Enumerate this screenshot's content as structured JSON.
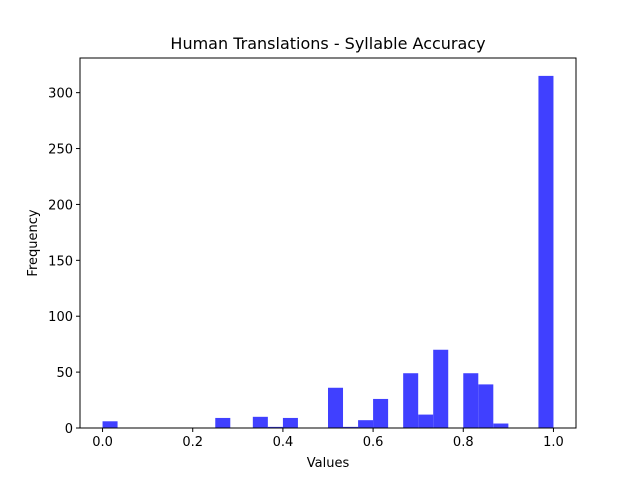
{
  "chart_data": {
    "type": "bar",
    "title": "Human Translations - Syllable Accuracy",
    "xlabel": "Values",
    "ylabel": "Frequency",
    "xlim": [
      -0.05,
      1.05
    ],
    "ylim": [
      0,
      331
    ],
    "xticks": [
      0.0,
      0.2,
      0.4,
      0.6,
      0.8,
      1.0
    ],
    "xtick_labels": [
      "0.0",
      "0.2",
      "0.4",
      "0.6",
      "0.8",
      "1.0"
    ],
    "yticks": [
      0,
      50,
      100,
      150,
      200,
      250,
      300
    ],
    "ytick_labels": [
      "0",
      "50",
      "100",
      "150",
      "200",
      "250",
      "300"
    ],
    "bar_color": "#4040ff",
    "bin_width": 0.0333,
    "bins": [
      {
        "x": 0.0,
        "value": 6
      },
      {
        "x": 0.25,
        "value": 9
      },
      {
        "x": 0.3333,
        "value": 10
      },
      {
        "x": 0.3667,
        "value": 1
      },
      {
        "x": 0.4,
        "value": 9
      },
      {
        "x": 0.5,
        "value": 36
      },
      {
        "x": 0.5333,
        "value": 1
      },
      {
        "x": 0.5667,
        "value": 7
      },
      {
        "x": 0.6,
        "value": 26
      },
      {
        "x": 0.6667,
        "value": 49
      },
      {
        "x": 0.7,
        "value": 12
      },
      {
        "x": 0.7333,
        "value": 70
      },
      {
        "x": 0.8,
        "value": 49
      },
      {
        "x": 0.8333,
        "value": 39
      },
      {
        "x": 0.8667,
        "value": 4
      },
      {
        "x": 0.9667,
        "value": 315
      }
    ],
    "grid": false,
    "legend": "none"
  }
}
